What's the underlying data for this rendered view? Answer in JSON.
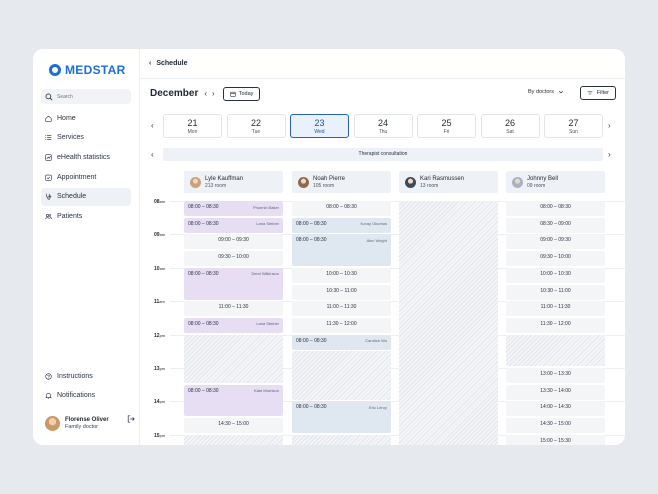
{
  "brand": {
    "name": "MEDSTAR",
    "color": "#1b6fd8"
  },
  "search": {
    "placeholder": "Search"
  },
  "nav": {
    "items": [
      {
        "label": "Home",
        "icon": "home-icon"
      },
      {
        "label": "Services",
        "icon": "list-icon"
      },
      {
        "label": "eHealth statistics",
        "icon": "chart-icon"
      },
      {
        "label": "Appointment",
        "icon": "calendar-check-icon"
      },
      {
        "label": "Schedule",
        "icon": "stethoscope-icon"
      },
      {
        "label": "Patients",
        "icon": "users-icon"
      }
    ],
    "bottom": [
      {
        "label": "Instructions",
        "icon": "help-icon"
      },
      {
        "label": "Notifications",
        "icon": "bell-icon"
      }
    ]
  },
  "user": {
    "name": "Florense Oliver",
    "role": "Family doctor"
  },
  "header": {
    "back": "‹",
    "title": "Schedule"
  },
  "toolbar": {
    "month": "December",
    "today": "Today",
    "by_doctors": "By doctors",
    "filter": "Filter"
  },
  "days": [
    {
      "num": "21",
      "name": "Mon",
      "selected": false
    },
    {
      "num": "22",
      "name": "Tue",
      "selected": false
    },
    {
      "num": "23",
      "name": "Wed",
      "selected": true
    },
    {
      "num": "24",
      "name": "Thu",
      "selected": false
    },
    {
      "num": "25",
      "name": "Fri",
      "selected": false
    },
    {
      "num": "26",
      "name": "Sat",
      "selected": false
    },
    {
      "num": "27",
      "name": "Sun",
      "selected": false
    }
  ],
  "therapist": "Therapist consultation",
  "doctors": [
    {
      "name": "Lyle Kauffman",
      "room": "213 room",
      "avatar_color": "#c9a27d"
    },
    {
      "name": "Noah Pierre",
      "room": "105 room",
      "avatar_color": "#8a6a52"
    },
    {
      "name": "Kari Rasmussen",
      "room": "13 room",
      "avatar_color": "#3b4a5e"
    },
    {
      "name": "Johnny Bell",
      "room": "09 room",
      "avatar_color": "#a7b3c4"
    }
  ],
  "hours": [
    {
      "h": "08",
      "ap": "am"
    },
    {
      "h": "09",
      "ap": "am"
    },
    {
      "h": "10",
      "ap": "am"
    },
    {
      "h": "11",
      "ap": "am"
    },
    {
      "h": "12",
      "ap": "pm"
    },
    {
      "h": "13",
      "ap": "pm"
    },
    {
      "h": "14",
      "ap": "pm"
    },
    {
      "h": "15",
      "ap": "pm"
    }
  ],
  "columns": [
    [
      {
        "type": "booked",
        "time": "08:00 – 08:30",
        "patient": "Phoenix Baker",
        "s": 0,
        "e": 0.5
      },
      {
        "type": "booked",
        "time": "08:00 – 08:30",
        "patient": "Lana Steiner",
        "s": 0.5,
        "e": 1.0
      },
      {
        "type": "free",
        "time": "09:00 – 09:30",
        "s": 1.0,
        "e": 1.5
      },
      {
        "type": "free",
        "time": "09:30 – 10:00",
        "s": 1.5,
        "e": 2.0
      },
      {
        "type": "booked",
        "time": "08:00 – 08:30",
        "patient": "Demi Wilkinson",
        "s": 2.0,
        "e": 3.0
      },
      {
        "type": "free",
        "time": "11:00 – 11:30",
        "s": 3.0,
        "e": 3.5
      },
      {
        "type": "booked",
        "time": "08:00 – 08:30",
        "patient": "Lana Steiner",
        "s": 3.5,
        "e": 4.0
      },
      {
        "type": "off",
        "s": 4.0,
        "e": 5.5
      },
      {
        "type": "booked",
        "time": "08:00 – 08:30",
        "patient": "Kate Morrison",
        "s": 5.5,
        "e": 6.5
      },
      {
        "type": "free",
        "time": "14:30 – 15:00",
        "s": 6.5,
        "e": 7.0
      },
      {
        "type": "off",
        "s": 7.0,
        "e": 7.6
      }
    ],
    [
      {
        "type": "free",
        "time": "08:00 – 08:30",
        "s": 0,
        "e": 0.5
      },
      {
        "type": "blue",
        "time": "08:00 – 08:30",
        "patient": "Koray Okumus",
        "s": 0.5,
        "e": 1.0
      },
      {
        "type": "blue",
        "time": "08:00 – 08:30",
        "patient": "Alec Wright",
        "s": 1.0,
        "e": 2.0
      },
      {
        "type": "free",
        "time": "10:00 – 10:30",
        "s": 2.0,
        "e": 2.5
      },
      {
        "type": "free",
        "time": "10:30 – 11:00",
        "s": 2.5,
        "e": 3.0
      },
      {
        "type": "free",
        "time": "11:00 – 11:30",
        "s": 3.0,
        "e": 3.5
      },
      {
        "type": "free",
        "time": "11:30 – 12:00",
        "s": 3.5,
        "e": 4.0
      },
      {
        "type": "blue",
        "time": "08:00 – 08:30",
        "patient": "Candice Wu",
        "s": 4.0,
        "e": 4.5
      },
      {
        "type": "off",
        "s": 4.5,
        "e": 6.0
      },
      {
        "type": "blue",
        "time": "08:00 – 08:30",
        "patient": "Eric Leroy",
        "s": 6.0,
        "e": 7.0
      },
      {
        "type": "off",
        "s": 7.0,
        "e": 7.6
      }
    ],
    [
      {
        "type": "off",
        "s": 0,
        "e": 7.6
      }
    ],
    [
      {
        "type": "free",
        "time": "08:00 – 08:30",
        "s": 0,
        "e": 0.5
      },
      {
        "type": "free",
        "time": "08:30 – 09:00",
        "s": 0.5,
        "e": 1.0
      },
      {
        "type": "free",
        "time": "09:00 – 09:30",
        "s": 1.0,
        "e": 1.5
      },
      {
        "type": "free",
        "time": "09:30 – 10:00",
        "s": 1.5,
        "e": 2.0
      },
      {
        "type": "free",
        "time": "10:00 – 10:30",
        "s": 2.0,
        "e": 2.5
      },
      {
        "type": "free",
        "time": "10:30 – 11:00",
        "s": 2.5,
        "e": 3.0
      },
      {
        "type": "free",
        "time": "11:00 – 11:30",
        "s": 3.0,
        "e": 3.5
      },
      {
        "type": "free",
        "time": "11:30 – 12:00",
        "s": 3.5,
        "e": 4.0
      },
      {
        "type": "off",
        "s": 4.0,
        "e": 5.0
      },
      {
        "type": "free",
        "time": "13:00 – 13:30",
        "s": 5.0,
        "e": 5.5
      },
      {
        "type": "free",
        "time": "13:30 – 14:00",
        "s": 5.5,
        "e": 6.0
      },
      {
        "type": "free",
        "time": "14:00 – 14:30",
        "s": 6.0,
        "e": 6.5
      },
      {
        "type": "free",
        "time": "14:30 – 15:00",
        "s": 6.5,
        "e": 7.0
      },
      {
        "type": "free",
        "time": "15:00 – 15:30",
        "s": 7.0,
        "e": 7.5
      }
    ]
  ]
}
